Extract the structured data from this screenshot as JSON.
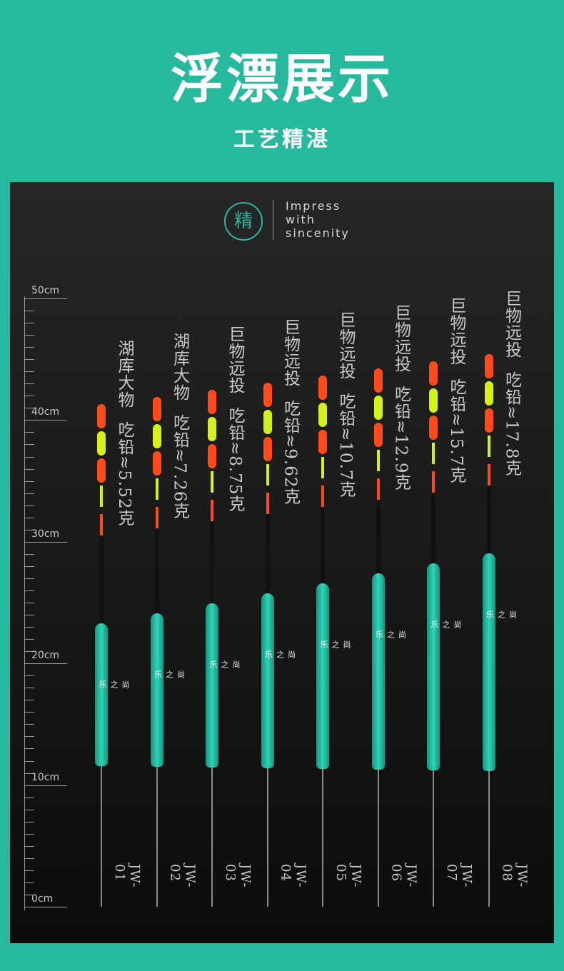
{
  "header": {
    "title": "浮漂展示",
    "subtitle": "工艺精湛"
  },
  "badge": {
    "char": "精",
    "slogan": [
      "Impress",
      "with",
      "sincenity"
    ]
  },
  "ruler": {
    "labels": [
      "50cm",
      "40cm",
      "30cm",
      "20cm",
      "10cm",
      "0cm"
    ]
  },
  "floats": [
    {
      "model": "JW-01",
      "name": "湖库大物",
      "spec": "吃铅≈5.52克",
      "brand": "尚之乐"
    },
    {
      "model": "JW-02",
      "name": "湖库大物",
      "spec": "吃铅≈7.26克",
      "brand": "尚之乐"
    },
    {
      "model": "JW-03",
      "name": "巨物远投",
      "spec": "吃铅≈8.75克",
      "brand": "尚之乐"
    },
    {
      "model": "JW-04",
      "name": "巨物远投",
      "spec": "吃铅≈9.62克",
      "brand": "尚之乐"
    },
    {
      "model": "JW-05",
      "name": "巨物远投",
      "spec": "吃铅≈10.7克",
      "brand": "尚之乐"
    },
    {
      "model": "JW-06",
      "name": "巨物远投",
      "spec": "吃铅≈12.9克",
      "brand": "尚之乐"
    },
    {
      "model": "JW-07",
      "name": "巨物远投",
      "spec": "吃铅≈15.7克",
      "brand": "尚之乐"
    },
    {
      "model": "JW-08",
      "name": "巨物远投",
      "spec": "吃铅≈17.8克",
      "brand": "尚之乐"
    }
  ],
  "colors": {
    "accent": "#27b99e",
    "tip_orange": "#ff4a1a",
    "tip_yellow": "#d4f21a",
    "body": "#2fd2b6"
  }
}
